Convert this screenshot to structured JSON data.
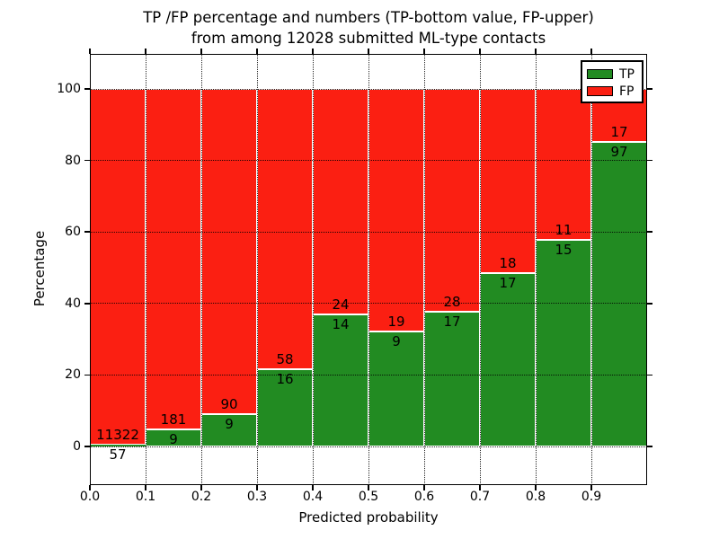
{
  "title": {
    "line1": "TP /FP percentage and numbers (TP-bottom value, FP-upper)",
    "line2": "from among 12028 submitted ML-type contacts"
  },
  "colors": {
    "tp_green": "#228b22",
    "fp_red": "#fb1f12",
    "frame": "#000000",
    "background": "#ffffff",
    "grid": "rgba(0,0,0,0.85)",
    "bar_edge": "#ffffff"
  },
  "chart_data": {
    "type": "bar",
    "stacked": true,
    "orientation": "vertical",
    "title": "TP /FP percentage and numbers (TP-bottom value, FP-upper) from among 12028 submitted ML-type contacts",
    "total_contacts": 12028,
    "xlabel": "Predicted probability",
    "ylabel": "Percentage",
    "xlim": [
      0.0,
      1.0
    ],
    "ylim": [
      -10.8,
      109.8
    ],
    "x_tick_labels": [
      "0.0",
      "0.1",
      "0.2",
      "0.3",
      "0.4",
      "0.5",
      "0.6",
      "0.7",
      "0.8",
      "0.9"
    ],
    "x_tick_values": [
      0.0,
      0.1,
      0.2,
      0.3,
      0.4,
      0.5,
      0.6,
      0.7,
      0.8,
      0.9
    ],
    "y_tick_values": [
      0,
      20,
      40,
      60,
      80,
      100
    ],
    "grid": "dotted",
    "legend": {
      "position": "upper right",
      "entries": [
        {
          "label": "TP",
          "color": "#228b22"
        },
        {
          "label": "FP",
          "color": "#fb1f12"
        }
      ]
    },
    "series": [
      {
        "name": "TP",
        "color": "#228b22",
        "counts": [
          57,
          9,
          9,
          16,
          14,
          9,
          17,
          17,
          15,
          97
        ],
        "percent": [
          0.5,
          4.7,
          9.1,
          21.6,
          36.8,
          32.1,
          37.8,
          48.6,
          57.7,
          85.1
        ]
      },
      {
        "name": "FP",
        "color": "#fb1f12",
        "counts": [
          11322,
          181,
          90,
          58,
          24,
          19,
          28,
          18,
          11,
          17
        ],
        "percent": [
          99.5,
          95.3,
          90.9,
          78.4,
          63.2,
          67.9,
          62.2,
          51.4,
          42.3,
          14.9
        ]
      }
    ],
    "bins": [
      {
        "range": [
          0.0,
          0.1
        ],
        "tp": 57,
        "fp": 11322,
        "tp_percent": 0.5,
        "fp_percent": 99.5
      },
      {
        "range": [
          0.1,
          0.2
        ],
        "tp": 9,
        "fp": 181,
        "tp_percent": 4.7,
        "fp_percent": 95.3
      },
      {
        "range": [
          0.2,
          0.3
        ],
        "tp": 9,
        "fp": 90,
        "tp_percent": 9.1,
        "fp_percent": 90.9
      },
      {
        "range": [
          0.3,
          0.4
        ],
        "tp": 16,
        "fp": 58,
        "tp_percent": 21.6,
        "fp_percent": 78.4
      },
      {
        "range": [
          0.4,
          0.5
        ],
        "tp": 14,
        "fp": 24,
        "tp_percent": 36.8,
        "fp_percent": 63.2
      },
      {
        "range": [
          0.5,
          0.6
        ],
        "tp": 9,
        "fp": 19,
        "tp_percent": 32.1,
        "fp_percent": 67.9
      },
      {
        "range": [
          0.6,
          0.7
        ],
        "tp": 17,
        "fp": 28,
        "tp_percent": 37.8,
        "fp_percent": 62.2
      },
      {
        "range": [
          0.7,
          0.8
        ],
        "tp": 17,
        "fp": 18,
        "tp_percent": 48.6,
        "fp_percent": 51.4
      },
      {
        "range": [
          0.8,
          0.9
        ],
        "tp": 15,
        "fp": 11,
        "tp_percent": 57.7,
        "fp_percent": 42.3
      },
      {
        "range": [
          0.9,
          1.0
        ],
        "tp": 97,
        "fp": 17,
        "tp_percent": 85.1,
        "fp_percent": 14.9
      }
    ]
  }
}
